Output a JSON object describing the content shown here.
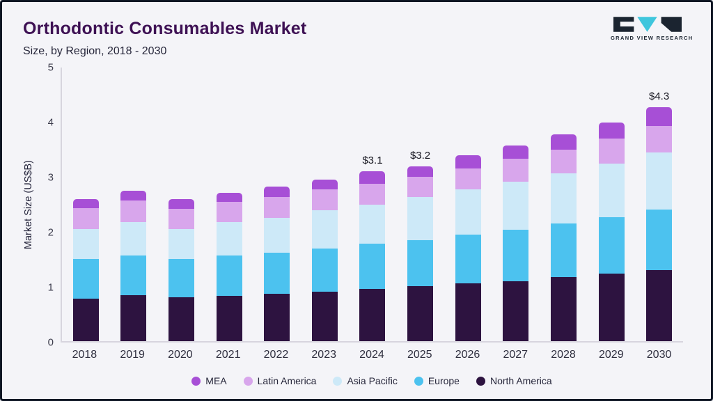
{
  "header": {
    "title": "Orthodontic Consumables Market",
    "subtitle": "Size, by Region, 2018 - 2030",
    "logo_text": "GRAND VIEW RESEARCH"
  },
  "colors": {
    "background": "#f4f4f8",
    "frame_border": "#0e1624",
    "title_text": "#3e1154",
    "logo_teal": "#3fc6dd",
    "logo_dark": "#1b2430"
  },
  "chart_data": {
    "type": "bar",
    "stacked": true,
    "title": "Orthodontic Consumables Market Size, by Region, 2018 - 2030",
    "ylabel": "Market Size (US$B)",
    "xlabel": "",
    "ylim": [
      0,
      5
    ],
    "yticks": [
      0,
      1,
      2,
      3,
      4,
      5
    ],
    "grid": false,
    "legend_position": "bottom",
    "categories": [
      "2018",
      "2019",
      "2020",
      "2021",
      "2022",
      "2023",
      "2024",
      "2025",
      "2026",
      "2027",
      "2028",
      "2029",
      "2030"
    ],
    "series": [
      {
        "name": "North America",
        "color": "#2d1340",
        "values": [
          0.78,
          0.84,
          0.8,
          0.83,
          0.87,
          0.9,
          0.95,
          1.0,
          1.05,
          1.1,
          1.17,
          1.24,
          1.3
        ]
      },
      {
        "name": "Europe",
        "color": "#4cc2ef",
        "values": [
          0.72,
          0.73,
          0.7,
          0.73,
          0.75,
          0.79,
          0.83,
          0.85,
          0.9,
          0.93,
          0.98,
          1.03,
          1.1
        ]
      },
      {
        "name": "Asia Pacific",
        "color": "#cde9f8",
        "values": [
          0.55,
          0.6,
          0.55,
          0.62,
          0.63,
          0.7,
          0.72,
          0.78,
          0.83,
          0.88,
          0.92,
          0.98,
          1.05
        ]
      },
      {
        "name": "Latin America",
        "color": "#d8a6ec",
        "values": [
          0.38,
          0.4,
          0.37,
          0.37,
          0.38,
          0.38,
          0.38,
          0.37,
          0.37,
          0.42,
          0.43,
          0.45,
          0.48
        ]
      },
      {
        "name": "MEA",
        "color": "#a74fd6",
        "values": [
          0.17,
          0.18,
          0.18,
          0.16,
          0.19,
          0.18,
          0.22,
          0.2,
          0.25,
          0.25,
          0.28,
          0.3,
          0.34
        ]
      }
    ],
    "annotations": [
      {
        "category": "2024",
        "label": "$3.1"
      },
      {
        "category": "2025",
        "label": "$3.2"
      },
      {
        "category": "2030",
        "label": "$4.3"
      }
    ],
    "legend": [
      "MEA",
      "Latin America",
      "Asia Pacific",
      "Europe",
      "North America"
    ]
  }
}
